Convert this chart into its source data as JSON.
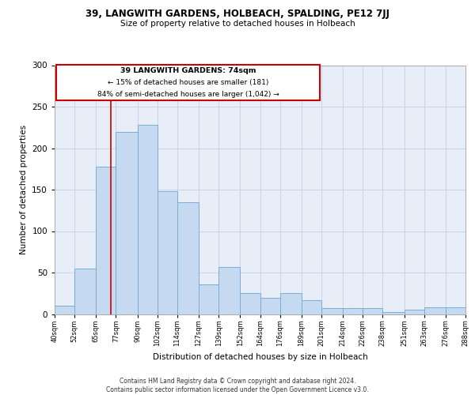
{
  "title1": "39, LANGWITH GARDENS, HOLBEACH, SPALDING, PE12 7JJ",
  "title2": "Size of property relative to detached houses in Holbeach",
  "xlabel": "Distribution of detached houses by size in Holbeach",
  "ylabel": "Number of detached properties",
  "annotation_line": 74,
  "annotation_text1": "39 LANGWITH GARDENS: 74sqm",
  "annotation_text2": "← 15% of detached houses are smaller (181)",
  "annotation_text3": "84% of semi-detached houses are larger (1,042) →",
  "footer1": "Contains HM Land Registry data © Crown copyright and database right 2024.",
  "footer2": "Contains public sector information licensed under the Open Government Licence v3.0.",
  "bins": [
    40,
    52,
    65,
    77,
    90,
    102,
    114,
    127,
    139,
    152,
    164,
    176,
    189,
    201,
    214,
    226,
    238,
    251,
    263,
    276,
    288
  ],
  "bar_heights": [
    10,
    55,
    178,
    220,
    228,
    148,
    135,
    36,
    57,
    25,
    20,
    25,
    17,
    7,
    7,
    7,
    2,
    5,
    8,
    8
  ],
  "bar_face_color": "#c5d9f0",
  "bar_edge_color": "#7aacd4",
  "vline_color": "#cc0000",
  "grid_color": "#c8d4e8",
  "bg_color": "#e8eef8",
  "ylim": [
    0,
    300
  ],
  "yticks": [
    0,
    50,
    100,
    150,
    200,
    250,
    300
  ]
}
